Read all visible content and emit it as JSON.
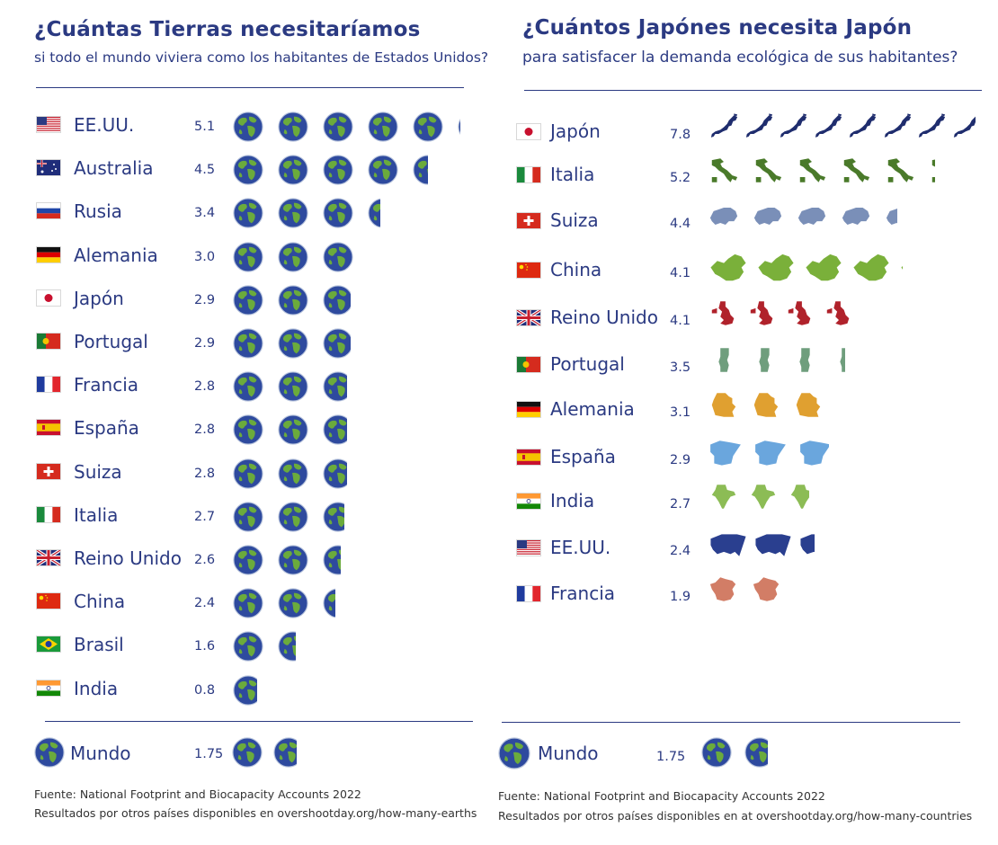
{
  "colors": {
    "text": "#2b3a82",
    "ocean": "#2e4a9e",
    "land": "#6bab3c",
    "rule": "#2b3a82"
  },
  "left": {
    "title": "¿Cuántas Tierras necesitaríamos",
    "subtitle": "si todo el mundo viviera como los habitantes de Estados Unidos?",
    "world": {
      "label": "Mundo",
      "value": "1.75"
    },
    "footer": [
      "Fuente: National Footprint and Biocapacity Accounts 2022",
      "Resultados por otros países disponibles en overshootday.org/how-many-earths"
    ]
  },
  "right": {
    "title": "¿Cuántos Japónes necesita Japón",
    "subtitle": "para satisfacer la demanda ecológica de sus habitantes?",
    "world": {
      "label": "Mundo",
      "value": "1.75"
    },
    "footer": [
      "Fuente: National Footprint and Biocapacity Accounts 2022",
      "Resultados por otros países disponibles en at overshootday.org/how-many-countries"
    ]
  },
  "chart_data": [
    {
      "type": "bar",
      "title": "¿Cuántas Tierras necesitaríamos",
      "subtitle": "si todo el mundo viviera como los habitantes de Estados Unidos?",
      "unit_icon": "earth-icon",
      "categories": [
        "EE.UU.",
        "Australia",
        "Rusia",
        "Alemania",
        "Japón",
        "Portugal",
        "Francia",
        "España",
        "Suiza",
        "Italia",
        "Reino Unido",
        "China",
        "Brasil",
        "India"
      ],
      "values": [
        5.1,
        4.5,
        3.4,
        3.0,
        2.9,
        2.9,
        2.8,
        2.8,
        2.8,
        2.7,
        2.6,
        2.4,
        1.6,
        0.8
      ],
      "labels": [
        "5.1",
        "4.5",
        "3.4",
        "3.0",
        "2.9",
        "2.9",
        "2.8",
        "2.8",
        "2.8",
        "2.7",
        "2.6",
        "2.4",
        "1.6",
        "0.8"
      ],
      "flags": [
        "us",
        "au",
        "ru",
        "de",
        "jp",
        "pt",
        "fr",
        "es",
        "ch",
        "it",
        "gb",
        "cn",
        "br",
        "in"
      ],
      "reference": {
        "label": "Mundo",
        "value": 1.75
      }
    },
    {
      "type": "bar",
      "title": "¿Cuántos Japónes necesita Japón",
      "subtitle": "para satisfacer la demanda ecológica de sus habitantes?",
      "unit_icon": "country-silhouette-icon",
      "categories": [
        "Japón",
        "Italia",
        "Suiza",
        "China",
        "Reino Unido",
        "Portugal",
        "Alemania",
        "España",
        "India",
        "EE.UU.",
        "Francia"
      ],
      "values": [
        7.8,
        5.2,
        4.4,
        4.1,
        4.1,
        3.5,
        3.1,
        2.9,
        2.7,
        2.4,
        1.9
      ],
      "labels": [
        "7.8",
        "5.2",
        "4.4",
        "4.1",
        "4.1",
        "3.5",
        "3.1",
        "2.9",
        "2.7",
        "2.4",
        "1.9"
      ],
      "flags": [
        "jp",
        "it",
        "ch",
        "cn",
        "gb",
        "pt",
        "de",
        "es",
        "in",
        "us",
        "fr"
      ],
      "mark_colors": [
        "#1f2d6e",
        "#4a7a2a",
        "#7a8fb8",
        "#7ab03a",
        "#b0222b",
        "#6f9e7d",
        "#e0a030",
        "#6aa6dd",
        "#8cbc55",
        "#2a3f8f",
        "#d27d66"
      ],
      "reference": {
        "label": "Mundo",
        "value": 1.75
      }
    }
  ]
}
